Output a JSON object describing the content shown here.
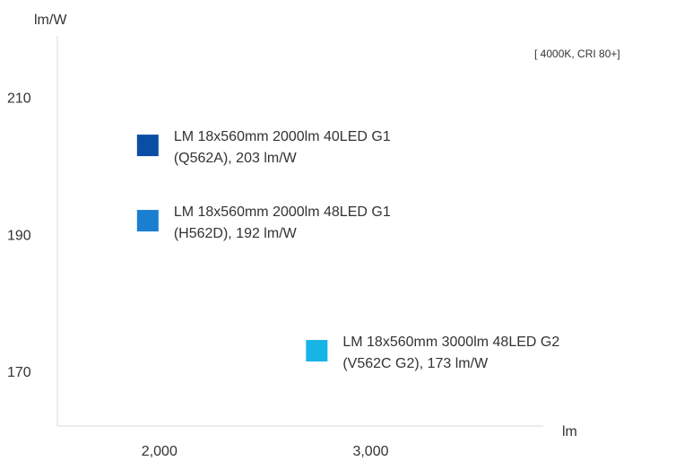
{
  "chart_data": {
    "type": "scatter",
    "title": "",
    "note": "[ 4000K, CRI 80+]",
    "xlabel": "lm",
    "ylabel": "lm/W",
    "xlim": [
      1500,
      3800
    ],
    "ylim": [
      162,
      219
    ],
    "x_ticks": [
      {
        "value": 2000,
        "label": "2,000"
      },
      {
        "value": 3000,
        "label": "3,000"
      }
    ],
    "y_ticks": [
      {
        "value": 170,
        "label": "170"
      },
      {
        "value": 190,
        "label": "190"
      },
      {
        "value": 210,
        "label": "210"
      }
    ],
    "grid": false,
    "points": [
      {
        "x": 2000,
        "y": 203,
        "color": "#0a4ea3",
        "label_line1": "LM 18x560mm  2000lm  40LED  G1",
        "label_line2": "(Q562A), 203 lm/W"
      },
      {
        "x": 2000,
        "y": 192,
        "color": "#1a7fd0",
        "label_line1": "LM 18x560mm  2000lm  48LED  G1",
        "label_line2": "(H562D), 192 lm/W"
      },
      {
        "x": 2800,
        "y": 173,
        "color": "#17b4e6",
        "label_line1": "LM 18x560mm  3000lm  48LED  G2",
        "label_line2": "(V562C G2), 173 lm/W"
      }
    ]
  }
}
